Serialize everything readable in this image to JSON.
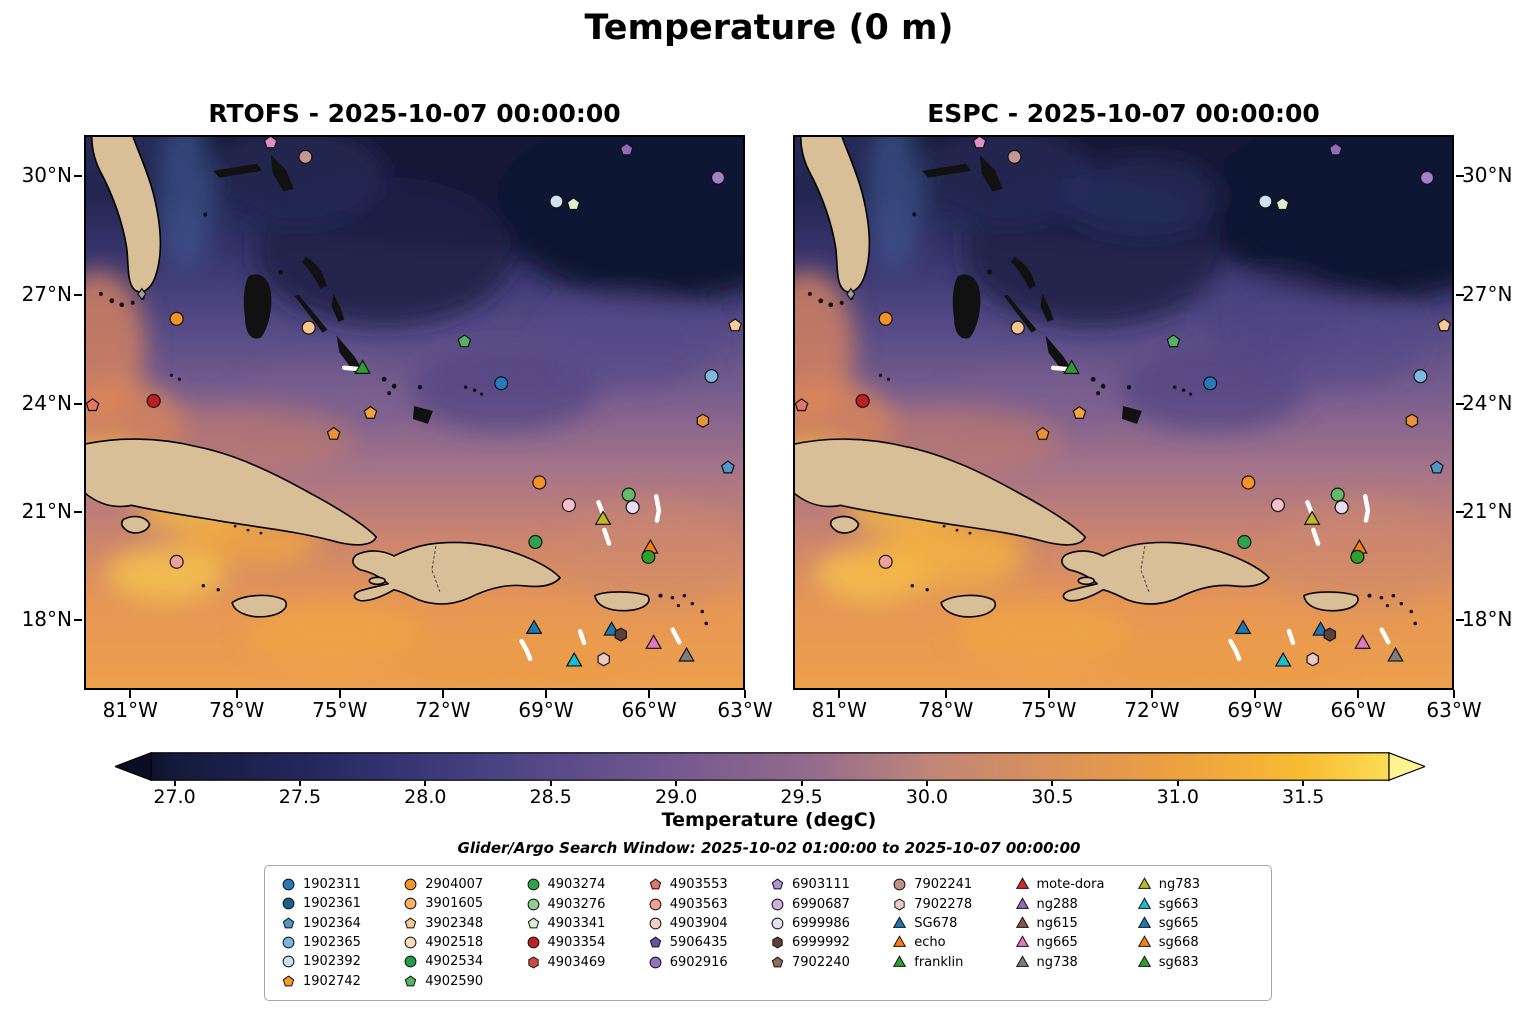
{
  "figure": {
    "title": "Temperature (0 m)",
    "colorbar": {
      "label": "Temperature (degC)",
      "subtitle": "Glider/Argo Search Window: 2025-10-02 01:00:00 to 2025-10-07 00:00:00"
    }
  },
  "panels": [
    {
      "id": "rtofs",
      "title": "RTOFS - 2025-10-07 00:00:00"
    },
    {
      "id": "espc",
      "title": "ESPC - 2025-10-07 00:00:00"
    }
  ],
  "axes": {
    "x_ticks": [
      {
        "label": "81°W",
        "f": 0.07
      },
      {
        "label": "78°W",
        "f": 0.231
      },
      {
        "label": "75°W",
        "f": 0.387
      },
      {
        "label": "72°W",
        "f": 0.543
      },
      {
        "label": "69°W",
        "f": 0.699
      },
      {
        "label": "66°W",
        "f": 0.855
      },
      {
        "label": "63°W",
        "f": 1.0
      }
    ],
    "y_ticks": [
      {
        "label": "30°N",
        "f": 0.074
      },
      {
        "label": "27°N",
        "f": 0.288
      },
      {
        "label": "24°N",
        "f": 0.485
      },
      {
        "label": "21°N",
        "f": 0.679
      },
      {
        "label": "18°N",
        "f": 0.874
      }
    ]
  },
  "markers": [
    {
      "shape": "pentagon",
      "color": "#df8fc4",
      "x": 0.281,
      "y": 0.01
    },
    {
      "shape": "circle",
      "color": "#c49795",
      "x": 0.334,
      "y": 0.036
    },
    {
      "shape": "pentagon",
      "color": "#8e6cb8",
      "x": 0.823,
      "y": 0.023
    },
    {
      "shape": "circle",
      "color": "#a57fca",
      "x": 0.962,
      "y": 0.074
    },
    {
      "shape": "circle",
      "color": "#cde3f2",
      "x": 0.716,
      "y": 0.117
    },
    {
      "shape": "pentagon",
      "color": "#dcefcd",
      "x": 0.742,
      "y": 0.122
    },
    {
      "shape": "circle",
      "color": "#f79324",
      "x": 0.138,
      "y": 0.33
    },
    {
      "shape": "circle",
      "color": "#f8c590",
      "x": 0.339,
      "y": 0.346
    },
    {
      "shape": "pentagon",
      "color": "#55b164",
      "x": 0.576,
      "y": 0.371
    },
    {
      "shape": "pentagon",
      "color": "#f9c996",
      "x": 0.988,
      "y": 0.342
    },
    {
      "shape": "triangle",
      "color": "#2ca02c",
      "x": 0.421,
      "y": 0.42
    },
    {
      "shape": "circle",
      "color": "#2879b9",
      "x": 0.632,
      "y": 0.447
    },
    {
      "shape": "circle",
      "color": "#7fb9dd",
      "x": 0.952,
      "y": 0.434
    },
    {
      "shape": "circle",
      "color": "#c01f1f",
      "x": 0.103,
      "y": 0.479
    },
    {
      "shape": "pentagon",
      "color": "#e2766b",
      "x": 0.01,
      "y": 0.487
    },
    {
      "shape": "pentagon",
      "color": "#f2a33c",
      "x": 0.433,
      "y": 0.501
    },
    {
      "shape": "pentagon",
      "color": "#f09030",
      "x": 0.377,
      "y": 0.539
    },
    {
      "shape": "hexagon",
      "color": "#e8923a",
      "x": 0.939,
      "y": 0.515
    },
    {
      "shape": "pentagon",
      "color": "#4f97c6",
      "x": 0.977,
      "y": 0.6
    },
    {
      "shape": "circle",
      "color": "#f79324",
      "x": 0.69,
      "y": 0.627
    },
    {
      "shape": "circle",
      "color": "#66bb6a",
      "x": 0.826,
      "y": 0.649
    },
    {
      "shape": "circle",
      "color": "#e8ddf2",
      "x": 0.832,
      "y": 0.672
    },
    {
      "shape": "circle",
      "color": "#f7c0ca",
      "x": 0.735,
      "y": 0.668
    },
    {
      "shape": "triangle",
      "color": "#bcbd22",
      "x": 0.787,
      "y": 0.694
    },
    {
      "shape": "circle",
      "color": "#2fa34c",
      "x": 0.684,
      "y": 0.735
    },
    {
      "shape": "triangle",
      "color": "#ff7f0e",
      "x": 0.859,
      "y": 0.746
    },
    {
      "shape": "circle",
      "color": "#2ca02c",
      "x": 0.856,
      "y": 0.762
    },
    {
      "shape": "circle",
      "color": "#f0a097",
      "x": 0.138,
      "y": 0.771
    },
    {
      "shape": "triangle",
      "color": "#1f77b4",
      "x": 0.682,
      "y": 0.892
    },
    {
      "shape": "triangle",
      "color": "#1f77b4",
      "x": 0.8,
      "y": 0.895
    },
    {
      "shape": "hexagon",
      "color": "#5d4037",
      "x": 0.814,
      "y": 0.903
    },
    {
      "shape": "triangle",
      "color": "#e377c2",
      "x": 0.864,
      "y": 0.919
    },
    {
      "shape": "triangle",
      "color": "#7f7f7f",
      "x": 0.914,
      "y": 0.942
    },
    {
      "shape": "triangle",
      "color": "#17becf",
      "x": 0.743,
      "y": 0.951
    },
    {
      "shape": "hexagon",
      "color": "#eec9c4",
      "x": 0.788,
      "y": 0.948
    },
    {
      "shape": "diamond",
      "color": "#9e9e9e",
      "x": 0.085,
      "y": 0.285
    }
  ],
  "tracks": [
    [
      [
        0.393,
        0.419
      ],
      [
        0.414,
        0.421
      ]
    ],
    [
      [
        0.78,
        0.663
      ],
      [
        0.786,
        0.681
      ]
    ],
    [
      [
        0.789,
        0.713
      ],
      [
        0.796,
        0.738
      ]
    ],
    [
      [
        0.868,
        0.652
      ],
      [
        0.872,
        0.678
      ],
      [
        0.869,
        0.696
      ]
    ],
    [
      [
        0.663,
        0.915
      ],
      [
        0.671,
        0.932
      ],
      [
        0.676,
        0.947
      ]
    ],
    [
      [
        0.752,
        0.897
      ],
      [
        0.758,
        0.918
      ]
    ],
    [
      [
        0.893,
        0.894
      ],
      [
        0.903,
        0.917
      ]
    ]
  ],
  "legend": {
    "columns": [
      [
        {
          "label": "1902311",
          "shape": "circle",
          "color": "#2879b9"
        },
        {
          "label": "1902361",
          "shape": "circle",
          "color": "#15638d"
        },
        {
          "label": "1902364",
          "shape": "pentagon",
          "color": "#4f97c6"
        },
        {
          "label": "1902365",
          "shape": "circle",
          "color": "#77b5dc"
        },
        {
          "label": "1902392",
          "shape": "circle",
          "color": "#c9e0f0"
        },
        {
          "label": "1902742",
          "shape": "pentagon",
          "color": "#f59a23"
        }
      ],
      [
        {
          "label": "2904007",
          "shape": "circle",
          "color": "#f79324"
        },
        {
          "label": "3901605",
          "shape": "circle",
          "color": "#f8b266"
        },
        {
          "label": "3902348",
          "shape": "pentagon",
          "color": "#f9c690"
        },
        {
          "label": "4902518",
          "shape": "circle",
          "color": "#fadcba"
        },
        {
          "label": "4902534",
          "shape": "circle",
          "color": "#1e9e48"
        },
        {
          "label": "4902590",
          "shape": "pentagon",
          "color": "#57b264"
        }
      ],
      [
        {
          "label": "4903274",
          "shape": "circle",
          "color": "#2fa34c"
        },
        {
          "label": "4903276",
          "shape": "circle",
          "color": "#8ed08e"
        },
        {
          "label": "4903341",
          "shape": "pentagon",
          "color": "#d7efcf"
        },
        {
          "label": "4903354",
          "shape": "circle",
          "color": "#c01f1f"
        },
        {
          "label": "4903469",
          "shape": "hexagon",
          "color": "#cd4a42"
        }
      ],
      [
        {
          "label": "4903553",
          "shape": "pentagon",
          "color": "#e2766b"
        },
        {
          "label": "4903563",
          "shape": "circle",
          "color": "#f0a097"
        },
        {
          "label": "4903904",
          "shape": "circle",
          "color": "#f7cdc4"
        },
        {
          "label": "5906435",
          "shape": "pentagon",
          "color": "#6b51a3"
        },
        {
          "label": "6902916",
          "shape": "circle",
          "color": "#9272c2"
        }
      ],
      [
        {
          "label": "6903111",
          "shape": "pentagon",
          "color": "#b194d2"
        },
        {
          "label": "6990687",
          "shape": "circle",
          "color": "#c9b2e0"
        },
        {
          "label": "6999986",
          "shape": "circle",
          "color": "#e8ddf2"
        },
        {
          "label": "6999992",
          "shape": "hexagon",
          "color": "#5d4037"
        },
        {
          "label": "7902240",
          "shape": "pentagon",
          "color": "#8d6e5a"
        }
      ],
      [
        {
          "label": "7902241",
          "shape": "circle",
          "color": "#c09089"
        },
        {
          "label": "7902278",
          "shape": "hexagon",
          "color": "#eec9c4"
        },
        {
          "label": "SG678",
          "shape": "triangle",
          "color": "#1f77b4"
        },
        {
          "label": "echo",
          "shape": "triangle",
          "color": "#ff7f0e"
        },
        {
          "label": "franklin",
          "shape": "triangle",
          "color": "#2ca02c"
        }
      ],
      [
        {
          "label": "mote-dora",
          "shape": "triangle",
          "color": "#d62728"
        },
        {
          "label": "ng288",
          "shape": "triangle",
          "color": "#9467bd"
        },
        {
          "label": "ng615",
          "shape": "triangle",
          "color": "#8c564b"
        },
        {
          "label": "ng665",
          "shape": "triangle",
          "color": "#e377c2"
        },
        {
          "label": "ng738",
          "shape": "triangle",
          "color": "#7f7f7f"
        }
      ],
      [
        {
          "label": "ng783",
          "shape": "triangle",
          "color": "#bcbd22"
        },
        {
          "label": "sg663",
          "shape": "triangle",
          "color": "#17becf"
        },
        {
          "label": "sg665",
          "shape": "triangle",
          "color": "#1f77b4"
        },
        {
          "label": "sg668",
          "shape": "triangle",
          "color": "#ff7f0e"
        },
        {
          "label": "sg683",
          "shape": "triangle",
          "color": "#2ca02c"
        }
      ]
    ]
  },
  "chart_data": {
    "type": "heatmap",
    "title": "Temperature (0 m)",
    "subplots": [
      "RTOFS - 2025-10-07 00:00:00",
      "ESPC - 2025-10-07 00:00:00"
    ],
    "x_ticks": [
      "81°W",
      "78°W",
      "75°W",
      "72°W",
      "69°W",
      "66°W",
      "63°W"
    ],
    "y_ticks": [
      "18°N",
      "21°N",
      "24°N",
      "27°N",
      "30°N"
    ],
    "x_range_deg_w": [
      82.4,
      63.0
    ],
    "y_range_deg_n": [
      16.1,
      31.1
    ],
    "annotation": "Glider/Argo Search Window: 2025-10-02 01:00:00 to 2025-10-07 00:00:00",
    "colorbar": {
      "label": "Temperature (degC)",
      "ticks": [
        27.0,
        27.5,
        28.0,
        28.5,
        29.0,
        29.5,
        30.0,
        30.5,
        31.0,
        31.5
      ],
      "extend": "both",
      "under": "#0a0d24",
      "over": "#fdf391",
      "colormap": [
        {
          "f": 0.0,
          "c": "#10132e"
        },
        {
          "f": 0.02,
          "c": "#151a3c"
        },
        {
          "f": 0.12,
          "c": "#23265a"
        },
        {
          "f": 0.22,
          "c": "#3b3778"
        },
        {
          "f": 0.32,
          "c": "#564a87"
        },
        {
          "f": 0.42,
          "c": "#73598f"
        },
        {
          "f": 0.53,
          "c": "#936b8c"
        },
        {
          "f": 0.58,
          "c": "#a87883"
        },
        {
          "f": 0.63,
          "c": "#c08677"
        },
        {
          "f": 0.73,
          "c": "#da9259"
        },
        {
          "f": 0.83,
          "c": "#eda13f"
        },
        {
          "f": 0.93,
          "c": "#f8bc32"
        },
        {
          "f": 1.0,
          "c": "#fadd55"
        }
      ]
    },
    "argo_floats": [
      "1902311",
      "1902361",
      "1902364",
      "1902365",
      "1902392",
      "1902742",
      "2904007",
      "3901605",
      "3902348",
      "4902518",
      "4902534",
      "4902590",
      "4903274",
      "4903276",
      "4903341",
      "4903354",
      "4903469",
      "4903553",
      "4903563",
      "4903904",
      "5906435",
      "6902916",
      "6903111",
      "6990687",
      "6999986",
      "6999992",
      "7902240",
      "7902241",
      "7902278"
    ],
    "gliders": [
      "SG678",
      "echo",
      "franklin",
      "mote-dora",
      "ng288",
      "ng615",
      "ng665",
      "ng738",
      "ng783",
      "sg663",
      "sg665",
      "sg668",
      "sg683"
    ]
  }
}
